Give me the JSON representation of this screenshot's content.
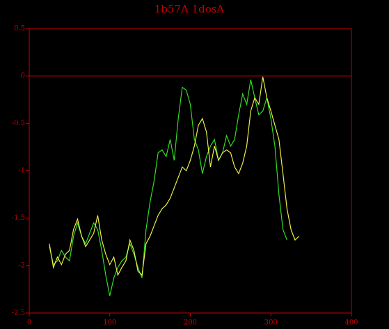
{
  "chart_data": {
    "type": "line",
    "title": "1b57A 1dosA",
    "xlim": [
      0,
      400
    ],
    "xticks": [
      0,
      100,
      200,
      300,
      400
    ],
    "ylim": [
      -2.5,
      0.5
    ],
    "yticks": [
      0.5,
      0,
      -0.5,
      -1,
      -1.5,
      -2,
      -2.5
    ],
    "reference_line": 0,
    "axis_color": "#c80000",
    "background": "#000000",
    "series": [
      {
        "color": "#33dd22",
        "x": [
          25,
          30,
          35,
          40,
          45,
          50,
          55,
          60,
          65,
          70,
          75,
          80,
          85,
          90,
          95,
          100,
          105,
          110,
          115,
          120,
          125,
          130,
          135,
          140,
          145,
          150,
          155,
          160,
          165,
          170,
          175,
          180,
          185,
          190,
          195,
          200,
          205,
          210,
          215,
          220,
          225,
          230,
          235,
          240,
          245,
          250,
          255,
          260,
          265,
          270,
          275,
          280,
          285,
          290,
          295,
          300,
          305,
          310,
          315,
          320
        ],
        "values": [
          -1.8,
          -1.99,
          -1.95,
          -1.84,
          -1.91,
          -1.95,
          -1.69,
          -1.55,
          -1.69,
          -1.77,
          -1.66,
          -1.55,
          -1.62,
          -1.84,
          -2.1,
          -2.32,
          -2.13,
          -2.02,
          -1.95,
          -1.91,
          -1.77,
          -1.88,
          -2.02,
          -2.13,
          -1.62,
          -1.33,
          -1.11,
          -0.81,
          -0.78,
          -0.85,
          -0.67,
          -0.89,
          -0.45,
          -0.12,
          -0.15,
          -0.3,
          -0.67,
          -0.78,
          -1.03,
          -0.85,
          -0.74,
          -0.67,
          -0.89,
          -0.81,
          -0.63,
          -0.74,
          -0.67,
          -0.41,
          -0.19,
          -0.3,
          -0.04,
          -0.23,
          -0.41,
          -0.37,
          -0.23,
          -0.45,
          -0.74,
          -1.25,
          -1.62,
          -1.73
        ]
      },
      {
        "color": "#eeee44",
        "x": [
          25,
          30,
          35,
          40,
          45,
          50,
          55,
          60,
          65,
          70,
          75,
          80,
          85,
          90,
          95,
          100,
          105,
          110,
          115,
          120,
          125,
          130,
          135,
          140,
          145,
          150,
          155,
          160,
          165,
          170,
          175,
          180,
          185,
          190,
          195,
          200,
          205,
          210,
          215,
          220,
          225,
          230,
          235,
          240,
          245,
          250,
          255,
          260,
          265,
          270,
          275,
          280,
          285,
          290,
          295,
          300,
          305,
          310,
          315,
          320,
          325,
          330,
          335
        ],
        "values": [
          -1.77,
          -2.02,
          -1.91,
          -1.99,
          -1.88,
          -1.84,
          -1.62,
          -1.51,
          -1.69,
          -1.8,
          -1.73,
          -1.66,
          -1.47,
          -1.73,
          -1.88,
          -1.99,
          -1.91,
          -2.1,
          -2.02,
          -1.95,
          -1.73,
          -1.84,
          -2.06,
          -2.1,
          -1.77,
          -1.69,
          -1.58,
          -1.47,
          -1.4,
          -1.36,
          -1.29,
          -1.18,
          -1.07,
          -0.96,
          -1.0,
          -0.89,
          -0.74,
          -0.52,
          -0.45,
          -0.59,
          -0.96,
          -0.74,
          -0.89,
          -0.81,
          -0.78,
          -0.81,
          -0.96,
          -1.03,
          -0.92,
          -0.74,
          -0.37,
          -0.23,
          -0.3,
          -0.01,
          -0.23,
          -0.37,
          -0.52,
          -0.67,
          -1.03,
          -1.4,
          -1.62,
          -1.73,
          -1.69
        ]
      }
    ]
  }
}
